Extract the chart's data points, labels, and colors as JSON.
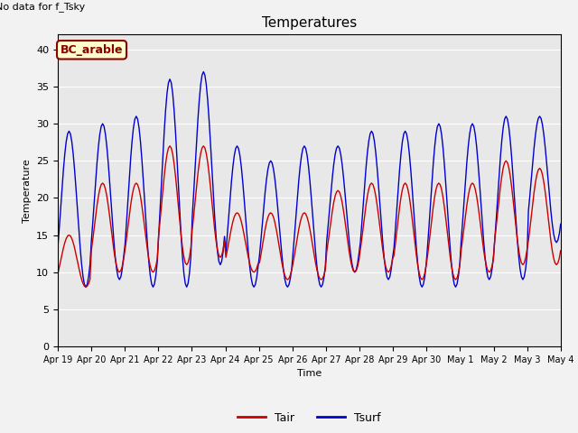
{
  "title": "Temperatures",
  "xlabel": "Time",
  "ylabel": "Temperature",
  "no_data_text": "No data for f_Tsky",
  "legend_site": "BC_arable",
  "ylim": [
    0,
    42
  ],
  "yticks": [
    0,
    5,
    10,
    15,
    20,
    25,
    30,
    35,
    40
  ],
  "line_tair_color": "#cc0000",
  "line_tsurf_color": "#0000cc",
  "bg_color": "#e8e8e8",
  "fig_bg_color": "#f2f2f2",
  "legend_facecolor": "#ffffcc",
  "legend_edgecolor": "#8B0000",
  "n_days": 15,
  "points_per_day": 24,
  "tair_min_vals": [
    8,
    10,
    10,
    11,
    12,
    10,
    9,
    9,
    10,
    10,
    9,
    9,
    10,
    11,
    11
  ],
  "tair_max_vals": [
    15,
    22,
    22,
    27,
    27,
    18,
    18,
    18,
    21,
    22,
    22,
    22,
    22,
    25,
    24
  ],
  "tsurf_min_vals": [
    8,
    9,
    8,
    8,
    11,
    8,
    8,
    8,
    10,
    9,
    8,
    8,
    9,
    9,
    14
  ],
  "tsurf_max_vals": [
    29,
    30,
    31,
    36,
    37,
    27,
    25,
    27,
    27,
    29,
    29,
    30,
    30,
    31,
    31
  ],
  "tick_labels": [
    "Apr 19",
    "Apr 20",
    "Apr 21",
    "Apr 22",
    "Apr 23",
    "Apr 24",
    "Apr 25",
    "Apr 26",
    "Apr 27",
    "Apr 28",
    "Apr 29",
    "Apr 30",
    "May 1",
    "May 2",
    "May 3",
    "May 4"
  ]
}
